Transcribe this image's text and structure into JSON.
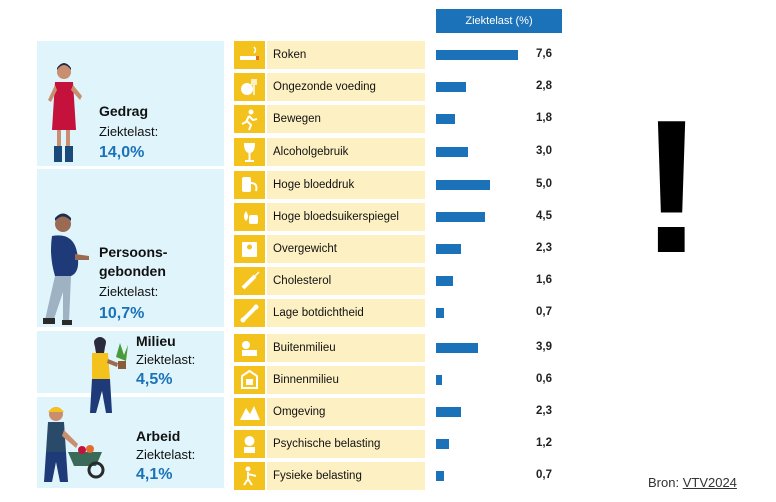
{
  "chart_data": {
    "type": "bar",
    "orientation": "horizontal",
    "value_header": "Ziektelast (%)",
    "xlim": [
      0,
      8
    ],
    "groups": [
      {
        "name": "Gedrag",
        "sublabel": "Ziektelast:",
        "total": "14,0%",
        "rows": [
          0,
          1,
          2,
          3
        ]
      },
      {
        "name": "Persoons-\ngebonden",
        "sublabel": "Ziektelast:",
        "total": "10,7%",
        "rows": [
          4,
          5,
          6,
          7,
          8
        ]
      },
      {
        "name": "Milieu",
        "sublabel": "Ziektelast:",
        "total": "4,5%",
        "rows": [
          9,
          10
        ]
      },
      {
        "name": "Arbeid",
        "sublabel": "Ziektelast:",
        "total": "4,1%",
        "rows": [
          11,
          12,
          13
        ]
      }
    ],
    "categories": [
      "Roken",
      "Ongezonde voeding",
      "Bewegen",
      "Alcoholgebruik",
      "Hoge bloeddruk",
      "Hoge bloedsuikerspiegel",
      "Overgewicht",
      "Cholesterol",
      "Lage botdichtheid",
      "Buitenmilieu",
      "Binnenmilieu",
      "Omgeving",
      "Psychische belasting",
      "Fysieke belasting"
    ],
    "values": [
      7.6,
      2.8,
      1.8,
      3.0,
      5.0,
      4.5,
      2.3,
      1.6,
      0.7,
      3.9,
      0.6,
      2.3,
      1.2,
      0.7
    ],
    "value_labels": [
      "7,6",
      "2,8",
      "1,8",
      "3,0",
      "5,0",
      "4,5",
      "2,3",
      "1,6",
      "0,7",
      "3,9",
      "0,6",
      "2,3",
      "1,2",
      "0,7"
    ],
    "icons": [
      "cigarette-icon",
      "food-icon",
      "running-icon",
      "wine-glass-icon",
      "blood-pressure-icon",
      "blood-sugar-icon",
      "scale-icon",
      "syringe-icon",
      "bone-icon",
      "outdoor-icon",
      "indoor-icon",
      "environment-icon",
      "stress-icon",
      "physical-load-icon"
    ]
  },
  "source": {
    "prefix": "Bron:",
    "link": "VTV2024"
  },
  "exclamation": "!",
  "colors": {
    "bar": "#1b72b8",
    "icon_bg": "#f4c21d",
    "label_bg": "#fdf1c3",
    "panel_bg": "#dff5fb",
    "accent_text": "#1b72b8"
  }
}
